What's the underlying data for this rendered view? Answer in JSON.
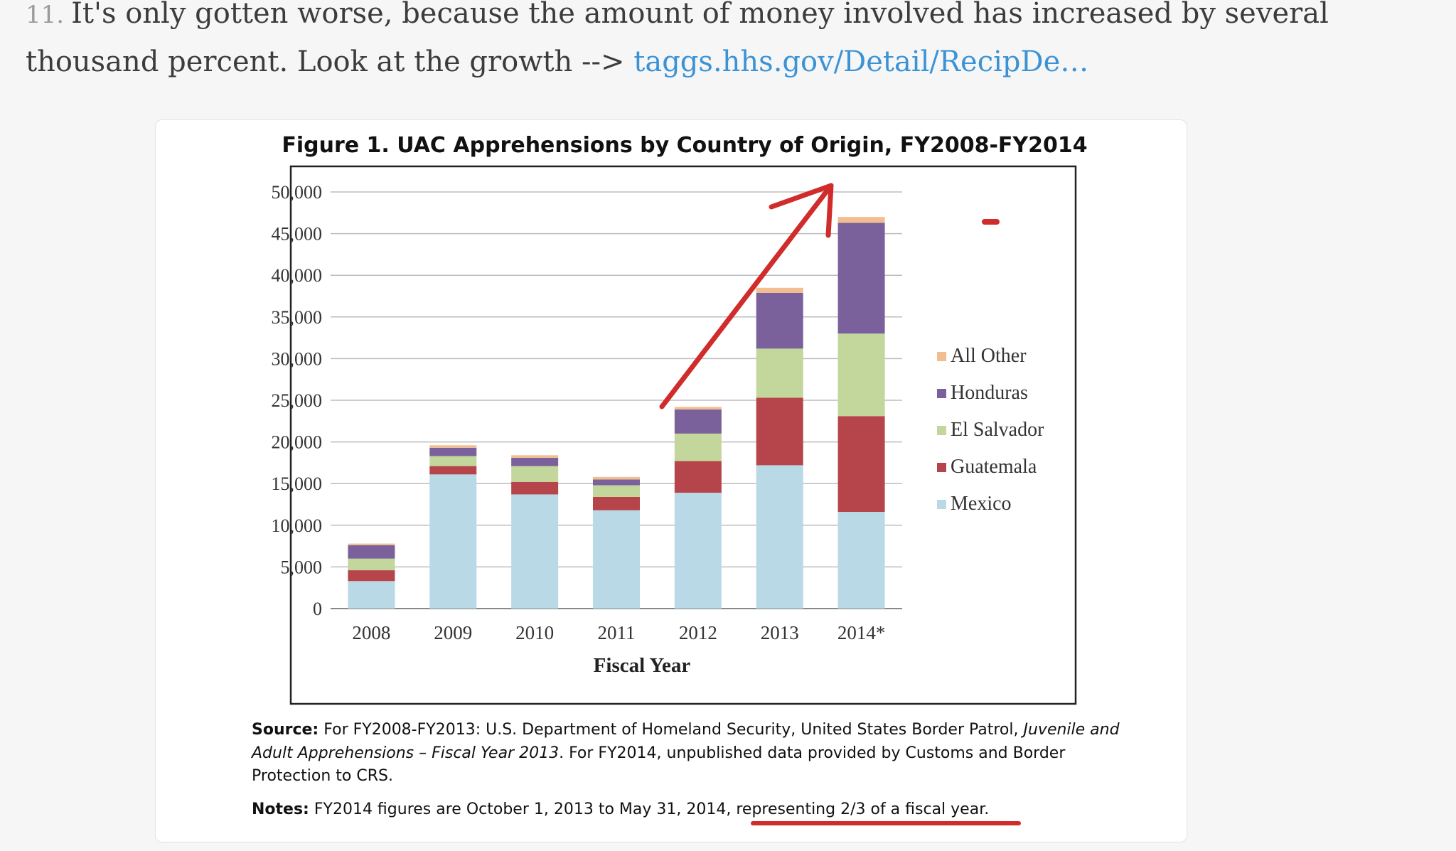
{
  "tweet": {
    "number": "11.",
    "text": "It's only gotten worse, because the amount of money involved has increased by several thousand percent. Look at the growth -->",
    "link_text": "taggs.hhs.gov/Detail/RecipDe…"
  },
  "figure": {
    "title": "Figure 1. UAC Apprehensions by Country of Origin, FY2008-FY2014",
    "source_label": "Source:",
    "source_line1": "For FY2008-FY2013: U.S. Department of Homeland Security, United States Border Patrol,",
    "source_line1_italic": "Juvenile and",
    "source_line2_italic": "Adult Apprehensions – Fiscal Year 2013",
    "source_line2": ". For FY2014, unpublished data provided by Customs and Border",
    "source_line3": "Protection to CRS.",
    "notes_label": "Notes:",
    "notes_text": "FY2014 figures are October 1, 2013 to May 31, 2014,",
    "notes_highlight": "representing 2/3 of a fiscal year."
  },
  "chart_data": {
    "type": "bar",
    "stacked": true,
    "title": "Figure 1. UAC Apprehensions by Country of Origin, FY2008-FY2014",
    "xlabel": "Fiscal Year",
    "ylabel": "",
    "ylim": [
      0,
      50000
    ],
    "yticks": [
      0,
      5000,
      10000,
      15000,
      20000,
      25000,
      30000,
      35000,
      40000,
      45000,
      50000
    ],
    "ytick_labels": [
      "0",
      "5,000",
      "10,000",
      "15,000",
      "20,000",
      "25,000",
      "30,000",
      "35,000",
      "40,000",
      "45,000",
      "50,000"
    ],
    "grid": true,
    "legend_position": "right",
    "categories": [
      "2008",
      "2009",
      "2010",
      "2011",
      "2012",
      "2013",
      "2014*"
    ],
    "series": [
      {
        "name": "Mexico",
        "color": "#b9d9e6",
        "values": [
          3300,
          16100,
          13700,
          11800,
          13900,
          17200,
          11600
        ]
      },
      {
        "name": "Guatemala",
        "color": "#b5454a",
        "values": [
          1300,
          1000,
          1500,
          1600,
          3800,
          8100,
          11500
        ]
      },
      {
        "name": "El Salvador",
        "color": "#c3d69b",
        "values": [
          1400,
          1200,
          1900,
          1400,
          3300,
          5900,
          9900
        ]
      },
      {
        "name": "Honduras",
        "color": "#7b619c",
        "values": [
          1600,
          1000,
          1000,
          700,
          2900,
          6700,
          13300
        ]
      },
      {
        "name": "All Other",
        "color": "#f2be8f",
        "values": [
          200,
          300,
          300,
          300,
          300,
          600,
          700
        ]
      }
    ]
  },
  "annotation_color": "#d12c2c"
}
